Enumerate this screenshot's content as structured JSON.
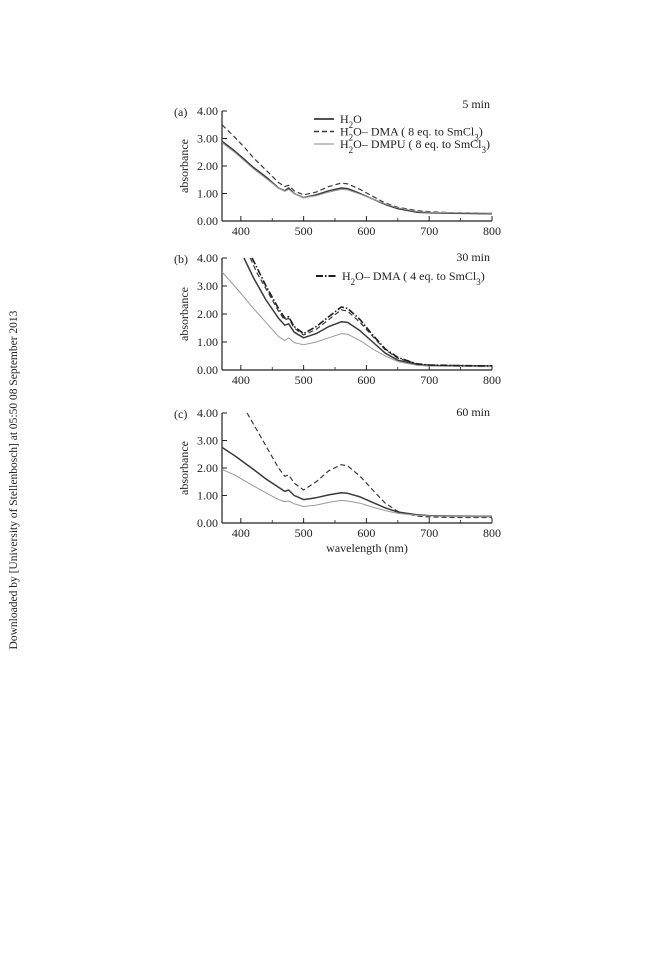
{
  "watermark": "Downloaded by [University of Stellenbosch] at 05:50 08 September 2013",
  "colors": {
    "h2o": "#3a3a3a",
    "dma": "#3a3a3a",
    "dmpu": "#9a9a9a",
    "dma4": "#1e1e1e",
    "axis": "#222222"
  },
  "chart_data": [
    {
      "type": "line",
      "panel_label": "(a)",
      "title": "5 min",
      "xlabel": "",
      "ylabel": "absorbance",
      "xlim": [
        370,
        800
      ],
      "ylim": [
        0,
        4
      ],
      "xticks": [
        "400",
        "500",
        "600",
        "700",
        "800"
      ],
      "yticks": [
        "0.00",
        "1.00",
        "2.00",
        "3.00",
        "4.00"
      ],
      "legend": [
        {
          "series_key": "h2o",
          "text_html": "H<tspan baseline-shift=\"sub\" font-size=\"9\">2</tspan>O"
        },
        {
          "series_key": "dma",
          "text_html": "H<tspan baseline-shift=\"sub\" font-size=\"9\">2</tspan>O– DMA ( 8 eq. to SmCl<tspan baseline-shift=\"sub\" font-size=\"9\">3</tspan>)"
        },
        {
          "series_key": "dmpu",
          "text_html": "H<tspan baseline-shift=\"sub\" font-size=\"9\">2</tspan>O– DMPU ( 8 eq. to SmCl<tspan baseline-shift=\"sub\" font-size=\"9\">3</tspan>)"
        }
      ],
      "series": [
        {
          "key": "h2o",
          "x": [
            370,
            390,
            405,
            420,
            440,
            460,
            470,
            476,
            485,
            500,
            520,
            540,
            560,
            570,
            590,
            610,
            630,
            650,
            680,
            700,
            740,
            780,
            800
          ],
          "y": [
            2.9,
            2.55,
            2.25,
            1.95,
            1.6,
            1.2,
            1.1,
            1.2,
            1.0,
            0.85,
            0.95,
            1.1,
            1.2,
            1.18,
            1.0,
            0.8,
            0.6,
            0.45,
            0.32,
            0.3,
            0.28,
            0.27,
            0.26
          ]
        },
        {
          "key": "dma",
          "x": [
            370,
            390,
            405,
            420,
            440,
            460,
            470,
            476,
            485,
            500,
            520,
            540,
            560,
            570,
            590,
            610,
            630,
            650,
            680,
            700,
            740,
            780,
            800
          ],
          "y": [
            3.5,
            3.05,
            2.7,
            2.3,
            1.85,
            1.4,
            1.25,
            1.3,
            1.1,
            0.95,
            1.05,
            1.25,
            1.38,
            1.35,
            1.15,
            0.9,
            0.65,
            0.5,
            0.38,
            0.34,
            0.3,
            0.29,
            0.28
          ]
        },
        {
          "key": "dmpu",
          "x": [
            370,
            390,
            405,
            420,
            440,
            460,
            470,
            476,
            485,
            500,
            520,
            540,
            560,
            570,
            590,
            610,
            630,
            650,
            680,
            700,
            740,
            780,
            800
          ],
          "y": [
            2.85,
            2.5,
            2.2,
            1.9,
            1.55,
            1.2,
            1.08,
            1.15,
            1.0,
            0.85,
            0.92,
            1.05,
            1.15,
            1.13,
            0.98,
            0.8,
            0.62,
            0.48,
            0.35,
            0.32,
            0.3,
            0.29,
            0.28
          ]
        }
      ]
    },
    {
      "type": "line",
      "panel_label": "(b)",
      "title": "30 min",
      "xlabel": "",
      "ylabel": "absorbance",
      "xlim": [
        370,
        800
      ],
      "ylim": [
        0,
        4
      ],
      "xticks": [
        "400",
        "500",
        "600",
        "700",
        "800"
      ],
      "yticks": [
        "0.00",
        "1.00",
        "2.00",
        "3.00",
        "4.00"
      ],
      "legend": [
        {
          "series_key": "dma4",
          "text_html": "H<tspan baseline-shift=\"sub\" font-size=\"9\">2</tspan>O– DMA ( 4 eq. to SmCl<tspan baseline-shift=\"sub\" font-size=\"9\">3</tspan>)"
        }
      ],
      "series": [
        {
          "key": "h2o",
          "x": [
            405,
            420,
            440,
            460,
            470,
            476,
            485,
            500,
            520,
            540,
            560,
            570,
            590,
            610,
            630,
            650,
            680,
            700,
            740,
            780,
            800
          ],
          "y": [
            4.0,
            3.3,
            2.5,
            1.85,
            1.6,
            1.65,
            1.35,
            1.15,
            1.3,
            1.55,
            1.72,
            1.7,
            1.4,
            1.0,
            0.6,
            0.35,
            0.2,
            0.16,
            0.15,
            0.14,
            0.14
          ]
        },
        {
          "key": "dma",
          "x": [
            415,
            425,
            440,
            460,
            470,
            476,
            485,
            500,
            520,
            540,
            560,
            570,
            590,
            610,
            630,
            650,
            680,
            700,
            740,
            780,
            800
          ],
          "y": [
            4.0,
            3.5,
            2.9,
            2.1,
            1.78,
            1.85,
            1.5,
            1.25,
            1.45,
            1.8,
            2.15,
            2.1,
            1.7,
            1.2,
            0.72,
            0.42,
            0.22,
            0.18,
            0.16,
            0.15,
            0.15
          ]
        },
        {
          "key": "dmpu",
          "x": [
            370,
            390,
            405,
            420,
            440,
            460,
            470,
            476,
            485,
            500,
            520,
            540,
            560,
            570,
            590,
            610,
            630,
            650,
            680,
            700,
            740,
            780,
            800
          ],
          "y": [
            3.5,
            3.0,
            2.6,
            2.2,
            1.7,
            1.2,
            1.05,
            1.15,
            0.98,
            0.9,
            1.0,
            1.15,
            1.3,
            1.28,
            1.05,
            0.75,
            0.5,
            0.3,
            0.17,
            0.14,
            0.13,
            0.12,
            0.12
          ]
        },
        {
          "key": "dma4",
          "x": [
            418,
            428,
            440,
            460,
            470,
            476,
            485,
            500,
            520,
            540,
            560,
            570,
            590,
            610,
            630,
            650,
            680,
            700,
            740,
            780,
            800
          ],
          "y": [
            4.0,
            3.55,
            3.0,
            2.2,
            1.85,
            1.9,
            1.55,
            1.3,
            1.55,
            1.9,
            2.25,
            2.2,
            1.8,
            1.25,
            0.75,
            0.45,
            0.22,
            0.18,
            0.16,
            0.15,
            0.15
          ]
        }
      ]
    },
    {
      "type": "line",
      "panel_label": "(c)",
      "title": "60 min",
      "xlabel": "wavelength (nm)",
      "ylabel": "absorbance",
      "xlim": [
        370,
        800
      ],
      "ylim": [
        0,
        4
      ],
      "xticks": [
        "400",
        "500",
        "600",
        "700",
        "800"
      ],
      "yticks": [
        "0.00",
        "1.00",
        "2.00",
        "3.00",
        "4.00"
      ],
      "legend": [],
      "series": [
        {
          "key": "h2o",
          "x": [
            370,
            390,
            405,
            420,
            440,
            460,
            470,
            476,
            485,
            500,
            520,
            540,
            560,
            570,
            590,
            610,
            630,
            650,
            680,
            700,
            740,
            780,
            800
          ],
          "y": [
            2.75,
            2.45,
            2.2,
            1.95,
            1.6,
            1.3,
            1.15,
            1.2,
            1.0,
            0.85,
            0.92,
            1.02,
            1.1,
            1.08,
            0.95,
            0.75,
            0.55,
            0.4,
            0.3,
            0.27,
            0.25,
            0.24,
            0.24
          ]
        },
        {
          "key": "dma",
          "x": [
            410,
            420,
            440,
            460,
            470,
            476,
            485,
            500,
            520,
            540,
            560,
            570,
            590,
            610,
            630,
            650,
            680,
            700,
            740,
            780,
            800
          ],
          "y": [
            4.0,
            3.6,
            2.8,
            2.0,
            1.7,
            1.75,
            1.45,
            1.2,
            1.5,
            1.9,
            2.12,
            2.08,
            1.7,
            1.2,
            0.72,
            0.42,
            0.25,
            0.22,
            0.2,
            0.2,
            0.2
          ]
        },
        {
          "key": "dmpu",
          "x": [
            370,
            390,
            405,
            420,
            440,
            460,
            470,
            476,
            485,
            500,
            520,
            540,
            560,
            570,
            590,
            610,
            630,
            650,
            680,
            700,
            740,
            780,
            800
          ],
          "y": [
            1.95,
            1.75,
            1.55,
            1.35,
            1.1,
            0.85,
            0.78,
            0.8,
            0.7,
            0.6,
            0.65,
            0.75,
            0.82,
            0.8,
            0.72,
            0.58,
            0.45,
            0.35,
            0.28,
            0.26,
            0.24,
            0.23,
            0.23
          ]
        }
      ]
    }
  ]
}
